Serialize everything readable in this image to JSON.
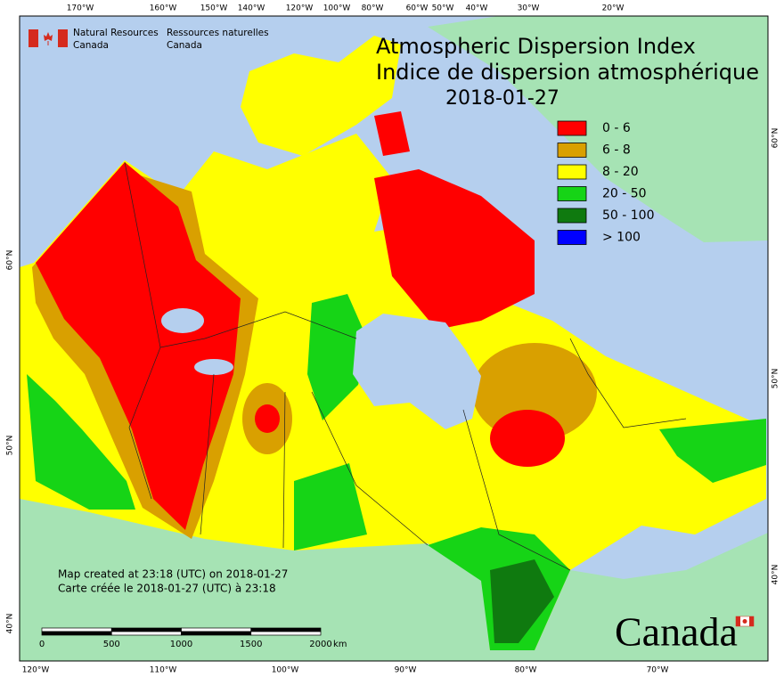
{
  "header": {
    "agency_en": [
      "Natural Resources",
      "Canada"
    ],
    "agency_fr": [
      "Ressources naturelles",
      "Canada"
    ]
  },
  "title": {
    "en": "Atmospheric Dispersion Index",
    "fr": "Indice de dispersion atmosphérique",
    "date": "2018-01-27"
  },
  "legend": [
    {
      "label": "0 - 6",
      "color": "#ff0000"
    },
    {
      "label": "6 - 8",
      "color": "#d9a000"
    },
    {
      "label": "8 - 20",
      "color": "#ffff00"
    },
    {
      "label": "20 - 50",
      "color": "#16d416"
    },
    {
      "label": "50 - 100",
      "color": "#0f7a0f"
    },
    {
      "label": "> 100",
      "color": "#0000ff"
    }
  ],
  "graticule": {
    "top": [
      "170°W",
      "160°W",
      "150°W",
      "140°W",
      "120°W",
      "100°W",
      "80°W",
      "60°W",
      "50°W",
      "40°W",
      "30°W",
      "20°W"
    ],
    "bottom": [
      "120°W",
      "110°W",
      "100°W",
      "90°W",
      "80°W",
      "70°W"
    ],
    "left": [
      "60°N",
      "50°N",
      "40°N"
    ],
    "right": [
      "60°N",
      "50°N",
      "40°N"
    ]
  },
  "footer": {
    "created_en": "Map created at 23:18 (UTC) on 2018-01-27",
    "created_fr": "Carte créée le 2018-01-27 (UTC) à 23:18"
  },
  "scale": {
    "ticks": [
      "0",
      "500",
      "1000",
      "1500",
      "2000"
    ],
    "unit": "km"
  },
  "wordmark": "Canada"
}
